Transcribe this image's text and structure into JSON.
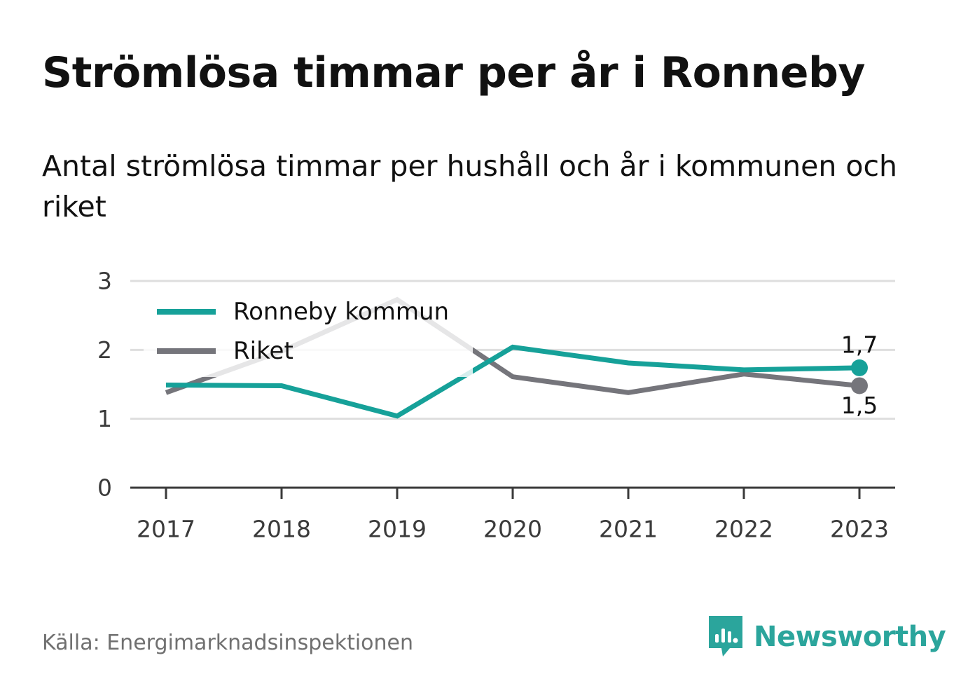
{
  "title": "Strömlösa timmar per år i Ronneby",
  "subtitle": "Antal strömlösa timmar per hushåll och år i kommunen och riket",
  "source": "Källa: Energimarknadsinspektionen",
  "brand": {
    "name": "Newsworthy",
    "icon": "newsworthy-logo-icon",
    "color": "#2ba59c"
  },
  "chart_data": {
    "type": "line",
    "categories": [
      "2017",
      "2018",
      "2019",
      "2020",
      "2021",
      "2022",
      "2023"
    ],
    "ylim": [
      0,
      3
    ],
    "yticks": [
      "0",
      "1",
      "2",
      "3"
    ],
    "grid": true,
    "legend_position": "top-left",
    "series": [
      {
        "name": "Ronneby kommun",
        "color": "#16a199",
        "values": [
          1.49,
          1.48,
          1.04,
          2.04,
          1.81,
          1.71,
          1.74
        ],
        "end_label": "1,7",
        "end_label_position": "above"
      },
      {
        "name": "Riket",
        "color": "#75757b",
        "values": [
          1.38,
          1.98,
          2.73,
          1.61,
          1.38,
          1.65,
          1.48
        ],
        "end_label": "1,5",
        "end_label_position": "below"
      }
    ]
  }
}
